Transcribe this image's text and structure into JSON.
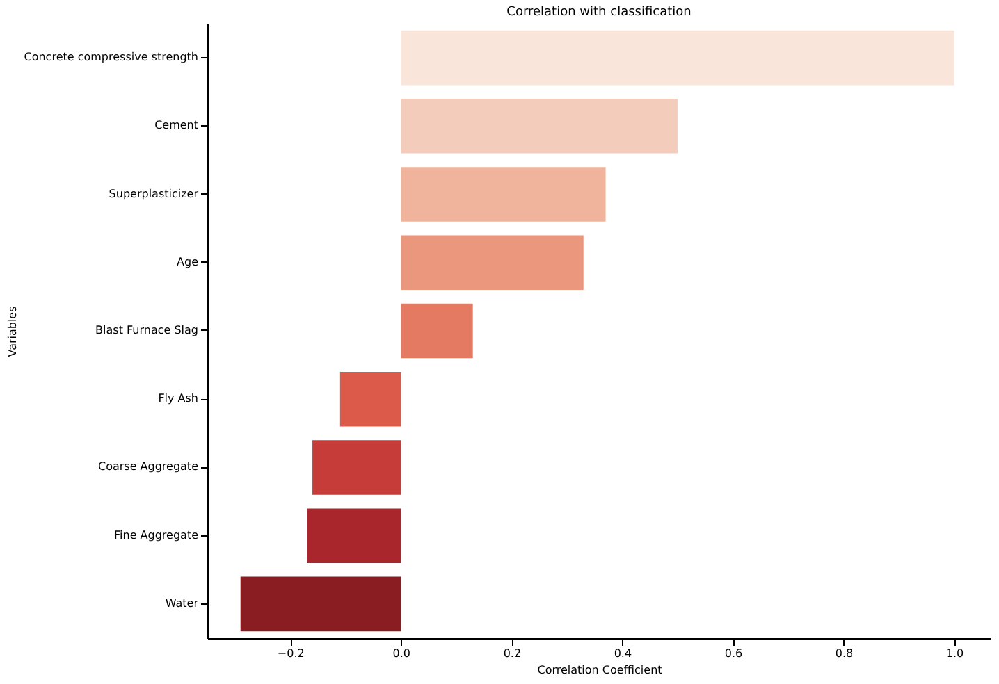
{
  "chart_data": {
    "type": "bar",
    "orientation": "horizontal",
    "title": "Correlation with classification",
    "xlabel": "Correlation Coefficient",
    "ylabel": "Variables",
    "categories": [
      "Concrete compressive strength",
      "Cement",
      "Superplasticizer",
      "Age",
      "Blast Furnace Slag",
      "Fly Ash",
      "Coarse Aggregate",
      "Fine Aggregate",
      "Water"
    ],
    "values": [
      1.0,
      0.5,
      0.37,
      0.33,
      0.13,
      -0.11,
      -0.16,
      -0.17,
      -0.29
    ],
    "colors": [
      "#fae5db",
      "#f4ccbb",
      "#f0b39b",
      "#ea977d",
      "#e57a62",
      "#dc5a4a",
      "#c53c38",
      "#a8262c",
      "#891d22"
    ],
    "xlim": [
      -0.35,
      1.066
    ],
    "xticks": [
      {
        "value": -0.2,
        "label": "−0.2"
      },
      {
        "value": 0,
        "label": "0.0"
      },
      {
        "value": 0.2,
        "label": "0.2"
      },
      {
        "value": 0.4,
        "label": "0.4"
      },
      {
        "value": 0.6,
        "label": "0.6"
      },
      {
        "value": 0.8,
        "label": "0.8"
      },
      {
        "value": 1,
        "label": "1.0"
      }
    ],
    "grid": false
  }
}
